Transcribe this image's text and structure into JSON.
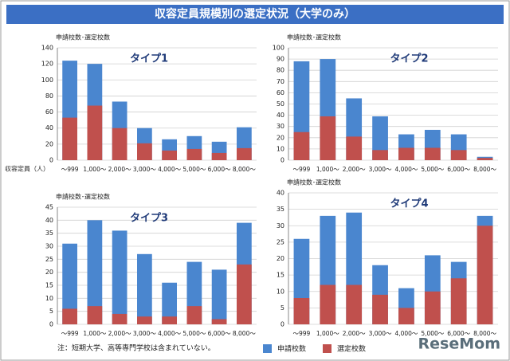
{
  "title": "収容定員規模別の選定状況（大学のみ）",
  "x_label": "収容定員（人）",
  "note": "注：短期大学、高等専門学校は含まれていない。",
  "logo": "ReseMom",
  "chart_data": [
    {
      "type": "bar",
      "title": "タイプ1",
      "y_label": "申請校数･選定校数",
      "categories": [
        "～999",
        "1,000～",
        "2,000～",
        "3,000～",
        "4,000～",
        "5,000～",
        "6,000～",
        "8,000～"
      ],
      "series": [
        {
          "name": "申請校数",
          "color": "#4a86cf",
          "values": [
            124,
            120,
            73,
            40,
            26,
            30,
            23,
            41
          ]
        },
        {
          "name": "選定校数",
          "color": "#c0504d",
          "values": [
            53,
            68,
            40,
            21,
            12,
            14,
            9,
            15
          ]
        }
      ],
      "ylim": [
        0,
        140
      ],
      "yticks": [
        0,
        20,
        40,
        60,
        80,
        100,
        120,
        140
      ],
      "grid": true
    },
    {
      "type": "bar",
      "title": "タイプ2",
      "y_label": "申請校数･選定校数",
      "categories": [
        "～999",
        "1,000～",
        "2,000～",
        "3,000～",
        "4,000～",
        "5,000～",
        "6,000～",
        "8,000～"
      ],
      "series": [
        {
          "color": "#4a86cf",
          "values": [
            88,
            90,
            55,
            39,
            23,
            27,
            23,
            3
          ]
        },
        {
          "color": "#c0504d",
          "values": [
            25,
            39,
            21,
            9,
            11,
            11,
            9,
            2
          ]
        }
      ],
      "ylim": [
        0,
        100
      ],
      "yticks": [
        0,
        10,
        20,
        30,
        40,
        50,
        60,
        70,
        80,
        90,
        100
      ],
      "grid": true
    },
    {
      "type": "bar",
      "title": "タイプ3",
      "y_label": "申請校数･選定校数",
      "categories": [
        "～999",
        "1,000～",
        "2,000～",
        "3,000～",
        "4,000～",
        "5,000～",
        "6,000～",
        "8,000～"
      ],
      "series": [
        {
          "color": "#4a86cf",
          "values": [
            31,
            40,
            36,
            27,
            16,
            24,
            21,
            39
          ]
        },
        {
          "color": "#c0504d",
          "values": [
            6,
            7,
            4,
            3,
            3,
            7,
            2,
            23
          ]
        }
      ],
      "ylim": [
        0,
        45
      ],
      "yticks": [
        0,
        5,
        10,
        15,
        20,
        25,
        30,
        35,
        40,
        45
      ],
      "grid": true
    },
    {
      "type": "bar",
      "title": "タイプ4",
      "y_label": "申請校数･選定校数",
      "categories": [
        "～999",
        "1,000～",
        "2,000～",
        "3,000～",
        "4,000～",
        "5,000～",
        "6,000～",
        "8,000～"
      ],
      "series": [
        {
          "color": "#4a86cf",
          "values": [
            26,
            33,
            34,
            18,
            11,
            21,
            19,
            33
          ]
        },
        {
          "color": "#c0504d",
          "values": [
            8,
            12,
            12,
            9,
            5,
            10,
            14,
            30
          ]
        }
      ],
      "ylim": [
        0,
        40
      ],
      "yticks": [
        0,
        5,
        10,
        15,
        20,
        25,
        30,
        35,
        40
      ],
      "grid": true
    }
  ]
}
